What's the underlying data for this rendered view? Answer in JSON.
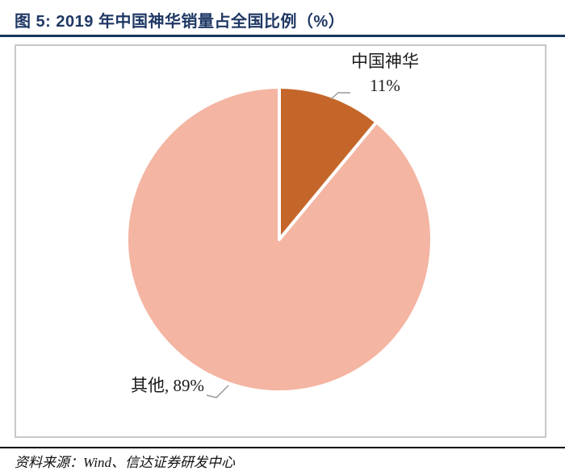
{
  "figure": {
    "title": "图 5: 2019 年中国神华销量占全国比例（%）",
    "source": "资料来源：Wind、信达证券研发中心"
  },
  "chart_data": {
    "type": "pie",
    "title": "2019 年中国神华销量占全国比例（%）",
    "unit": "%",
    "legend_position": "none",
    "start_angle_deg": 0,
    "direction": "clockwise",
    "series": [
      {
        "name": "中国神华",
        "value": 11,
        "color": "#C4662A"
      },
      {
        "name": "其他",
        "value": 89,
        "color": "#F4B5A2"
      }
    ],
    "data_labels": {
      "shenhua_name": "中国神华",
      "shenhua_value": "11%",
      "other": "其他, 89%"
    }
  },
  "colors": {
    "title_navy": "#1F3864",
    "title_rule": "#17365D",
    "frame_border": "#C8C8C8",
    "leader_line": "#999999",
    "footer_rule": "#000000"
  }
}
